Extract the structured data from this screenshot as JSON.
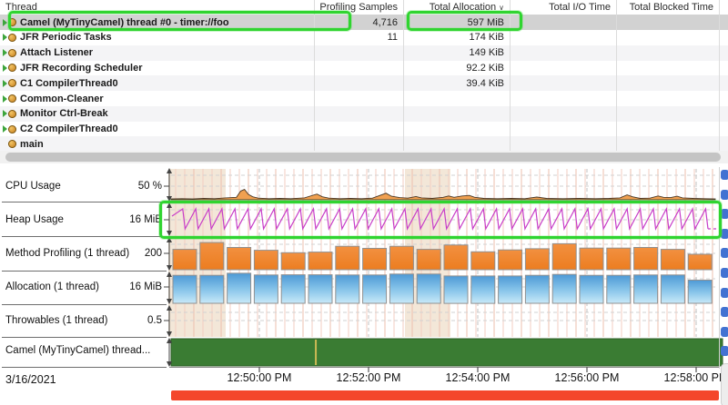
{
  "table": {
    "columns": [
      "Thread",
      "Profiling Samples",
      "Total Allocation",
      "Total I/O Time",
      "Total Blocked Time"
    ],
    "sort_column": "Total Allocation",
    "sort_indicator": "∨",
    "rows": [
      {
        "name": "Camel (MyTinyCamel) thread #0 - timer://foo",
        "samples": "4,716",
        "alloc": "597 MiB",
        "io": "",
        "blocked": "",
        "selected": true,
        "arrow": true
      },
      {
        "name": "JFR Periodic Tasks",
        "samples": "11",
        "alloc": "174 KiB",
        "io": "",
        "blocked": "",
        "arrow": true
      },
      {
        "name": "Attach Listener",
        "samples": "",
        "alloc": "149 KiB",
        "io": "",
        "blocked": "",
        "arrow": true
      },
      {
        "name": "JFR Recording Scheduler",
        "samples": "",
        "alloc": "92.2 KiB",
        "io": "",
        "blocked": "",
        "arrow": true
      },
      {
        "name": "C1 CompilerThread0",
        "samples": "",
        "alloc": "39.4 KiB",
        "io": "",
        "blocked": "",
        "arrow": true
      },
      {
        "name": "Common-Cleaner",
        "samples": "",
        "alloc": "",
        "io": "",
        "blocked": "",
        "arrow": true
      },
      {
        "name": "Monitor Ctrl-Break",
        "samples": "",
        "alloc": "",
        "io": "",
        "blocked": "",
        "arrow": true
      },
      {
        "name": "C2 CompilerThread0",
        "samples": "",
        "alloc": "",
        "io": "",
        "blocked": "",
        "arrow": true
      },
      {
        "name": "main",
        "samples": "",
        "alloc": "",
        "io": "",
        "blocked": "",
        "arrow": false
      }
    ]
  },
  "timeline": {
    "lanes": [
      {
        "label": "CPU Usage",
        "value": "50 %"
      },
      {
        "label": "Heap Usage",
        "value": "16 MiB"
      },
      {
        "label": "Method Profiling (1 thread)",
        "value": "200"
      },
      {
        "label": "Allocation (1 thread)",
        "value": "16 MiB"
      },
      {
        "label": "Throwables (1 thread)",
        "value": "0.5"
      },
      {
        "label": "Camel (MyTinyCamel) thread...",
        "value": ""
      }
    ],
    "date": "3/16/2021",
    "time_ticks": [
      "12:50:00 PM",
      "12:52:00 PM",
      "12:54:00 PM",
      "12:56:00 PM",
      "12:58:00 PM"
    ]
  },
  "chart_data": {
    "type": "timeline",
    "x_ticks": [
      "12:50:00 PM",
      "12:52:00 PM",
      "12:54:00 PM",
      "12:56:00 PM",
      "12:58:00 PM"
    ],
    "date": "3/16/2021",
    "cpu_usage": {
      "type": "area",
      "unit": "%",
      "axis_tick": "50 %",
      "points": [
        [
          0,
          3
        ],
        [
          0.02,
          4
        ],
        [
          0.04,
          3
        ],
        [
          0.06,
          5
        ],
        [
          0.08,
          4
        ],
        [
          0.1,
          7
        ],
        [
          0.12,
          9
        ],
        [
          0.128,
          32
        ],
        [
          0.135,
          38
        ],
        [
          0.142,
          20
        ],
        [
          0.15,
          11
        ],
        [
          0.16,
          6
        ],
        [
          0.18,
          4
        ],
        [
          0.2,
          5
        ],
        [
          0.22,
          4
        ],
        [
          0.245,
          7
        ],
        [
          0.258,
          15
        ],
        [
          0.268,
          21
        ],
        [
          0.278,
          11
        ],
        [
          0.29,
          6
        ],
        [
          0.31,
          4
        ],
        [
          0.33,
          5
        ],
        [
          0.35,
          4
        ],
        [
          0.37,
          6
        ],
        [
          0.385,
          17
        ],
        [
          0.395,
          24
        ],
        [
          0.405,
          13
        ],
        [
          0.42,
          8
        ],
        [
          0.435,
          6
        ],
        [
          0.45,
          12
        ],
        [
          0.46,
          7
        ],
        [
          0.48,
          5
        ],
        [
          0.5,
          9
        ],
        [
          0.51,
          14
        ],
        [
          0.52,
          9
        ],
        [
          0.535,
          14
        ],
        [
          0.548,
          16
        ],
        [
          0.558,
          9
        ],
        [
          0.575,
          5
        ],
        [
          0.6,
          4
        ],
        [
          0.625,
          5
        ],
        [
          0.65,
          4
        ],
        [
          0.672,
          10
        ],
        [
          0.69,
          5
        ],
        [
          0.72,
          4
        ],
        [
          0.75,
          5
        ],
        [
          0.78,
          4
        ],
        [
          0.805,
          5
        ],
        [
          0.825,
          7
        ],
        [
          0.838,
          18
        ],
        [
          0.848,
          11
        ],
        [
          0.862,
          5
        ],
        [
          0.88,
          6
        ],
        [
          0.895,
          14
        ],
        [
          0.905,
          9
        ],
        [
          0.918,
          8
        ],
        [
          0.93,
          13
        ],
        [
          0.94,
          7
        ],
        [
          0.96,
          5
        ],
        [
          0.98,
          4
        ],
        [
          1,
          3
        ]
      ]
    },
    "heap_usage": {
      "type": "sawtooth",
      "unit": "MiB",
      "axis_tick": "16 MiB",
      "teeth": 41,
      "min_mib": 4,
      "max_mib": 16
    },
    "method_profiling": {
      "type": "bar",
      "axis_tick": "200",
      "max": 200,
      "values": [
        132,
        176,
        144,
        126,
        110,
        114,
        152,
        138,
        152,
        132,
        160,
        116,
        128,
        136,
        168,
        140,
        140,
        144,
        132,
        100
      ]
    },
    "allocation": {
      "type": "bar",
      "unit": "MiB",
      "axis_tick": "16 MiB",
      "max": 16,
      "values": [
        14.7,
        14.7,
        15.8,
        14.9,
        15.0,
        15.0,
        14.9,
        14.9,
        15.4,
        15.4,
        14.4,
        14.4,
        14.4,
        14.7,
        15.2,
        14.7,
        14.7,
        14.9,
        14.9,
        12.2
      ]
    },
    "throwables": {
      "type": "empty",
      "axis_tick": "0.5"
    },
    "thread_state": {
      "type": "state",
      "color": "#3a7c33",
      "event_x_fraction": 0.266
    }
  },
  "colors": {
    "annotation_green": "#30d430",
    "selection_gray": "#d2d2d2",
    "range_bar_red": "#f4472b",
    "state_green": "#3a7c33",
    "bar_orange": "#ee7d1f",
    "bar_blue": "#4e9ad6",
    "heap_magenta": "#c83ec8",
    "band_beige": "#f3e7d8"
  }
}
